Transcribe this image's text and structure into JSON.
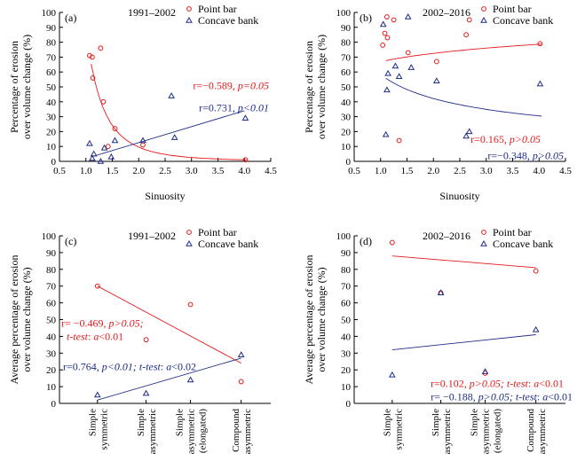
{
  "colors": {
    "point_bar": "#e31a1c",
    "concave_bank": "#1f2d87",
    "axis": "#000000"
  },
  "chart_data": [
    {
      "id": "a",
      "type": "scatter",
      "panel_label": "(a)",
      "period": "1991–2002",
      "xlabel": "Sinuosity",
      "ylabel": "Percentage of erosion over volume change (%)",
      "xlim": [
        0.5,
        4.5
      ],
      "ylim": [
        0,
        100
      ],
      "xticks": [
        "0.5",
        "1.0",
        "1.5",
        "2.0",
        "2.5",
        "3.0",
        "3.5",
        "4.0",
        "4.5"
      ],
      "yticks": [
        "0",
        "10",
        "20",
        "30",
        "40",
        "50",
        "60",
        "70",
        "80",
        "90",
        "100"
      ],
      "legend": [
        "Point bar",
        "Concave bank"
      ],
      "legend_placement": "top-right",
      "series": [
        {
          "name": "Point bar",
          "marker": "circle",
          "x": [
            1.07,
            1.12,
            1.13,
            1.28,
            1.33,
            1.42,
            1.55,
            2.08,
            4.02
          ],
          "y": [
            71,
            70,
            56,
            76,
            40,
            10,
            22,
            11,
            1
          ],
          "trend": "power",
          "trend_range": [
            1.1,
            4.05
          ],
          "stat": {
            "r": "r=−0.589, ",
            "p": "p=0.05"
          }
        },
        {
          "name": "Concave bank",
          "marker": "triangle",
          "x": [
            1.07,
            1.12,
            1.15,
            1.28,
            1.35,
            1.48,
            1.55,
            2.08,
            2.62,
            2.68,
            4.02
          ],
          "y": [
            12,
            2,
            5,
            0,
            9,
            3,
            14,
            14,
            44,
            16,
            29
          ],
          "trend": "linear",
          "trend_start": [
            1.1,
            3
          ],
          "trend_end": [
            4.0,
            34
          ],
          "stat": {
            "r": "r=0.731, ",
            "p": "p<0.01"
          }
        }
      ]
    },
    {
      "id": "b",
      "type": "scatter",
      "panel_label": "(b)",
      "period": "2002–2016",
      "xlabel": "Sinuosity",
      "ylabel": "Percentage of erosion over volume change (%)",
      "xlim": [
        0.5,
        4.5
      ],
      "ylim": [
        0,
        100
      ],
      "xticks": [
        "0.5",
        "1.0",
        "1.5",
        "2.0",
        "2.5",
        "3.0",
        "3.5",
        "4.0",
        "4.5"
      ],
      "yticks": [
        "0",
        "10",
        "20",
        "30",
        "40",
        "50",
        "60",
        "70",
        "80",
        "90",
        "100"
      ],
      "legend": [
        "Point bar",
        "Concave bank"
      ],
      "legend_placement": "top-right",
      "series": [
        {
          "name": "Point bar",
          "marker": "circle",
          "x": [
            1.04,
            1.08,
            1.12,
            1.13,
            1.25,
            1.35,
            1.52,
            2.06,
            2.62,
            2.68,
            4.02
          ],
          "y": [
            78,
            86,
            97,
            83,
            95,
            14,
            73,
            67,
            85,
            95,
            79
          ],
          "trend": "power",
          "trend_range": [
            1.1,
            4.05
          ],
          "stat": {
            "r": "r=0.165, ",
            "p": "p>0.05"
          }
        },
        {
          "name": "Concave bank",
          "marker": "triangle",
          "x": [
            1.05,
            1.1,
            1.12,
            1.14,
            1.28,
            1.35,
            1.52,
            1.58,
            2.06,
            2.62,
            2.68,
            4.02
          ],
          "y": [
            92,
            18,
            48,
            59,
            64,
            57,
            97,
            63,
            54,
            17,
            20,
            52
          ],
          "trend": "power",
          "trend_range": [
            1.1,
            4.05
          ],
          "stat": {
            "r": "r=−0.348, ",
            "p": "p>0.05"
          }
        }
      ]
    },
    {
      "id": "c",
      "type": "scatter",
      "panel_label": "(c)",
      "period": "1991–2002",
      "ylabel": "Average percentage of erosion over volume change (%)",
      "categories": [
        "Simple symmetric",
        "Simple asymmetric",
        "Simple asymmetric (elongated)",
        "Compound asymmetric"
      ],
      "category_lines": [
        [
          "Simple",
          "symmetric"
        ],
        [
          "Simple",
          "asymmetric"
        ],
        [
          "Simple",
          "asymmetric",
          "(elongated)"
        ],
        [
          "Compound",
          "asymmetric"
        ]
      ],
      "ylim": [
        0,
        100
      ],
      "yticks": [
        "0",
        "10",
        "20",
        "30",
        "40",
        "50",
        "60",
        "70",
        "80",
        "90",
        "100"
      ],
      "legend": [
        "Point bar",
        "Concave bank"
      ],
      "legend_placement": "top-right",
      "series": [
        {
          "name": "Point bar",
          "marker": "circle",
          "values": [
            70,
            38,
            59,
            13
          ],
          "trend_start": 70,
          "trend_end": 24,
          "stat": {
            "line1": {
              "r": "r= −0.469, ",
              "p": "p>0.05;"
            },
            "line2": {
              "t": "t-test",
              "rest": ": ",
              "a": "a",
              "tail": "<0.01"
            }
          }
        },
        {
          "name": "Concave bank",
          "marker": "triangle",
          "values": [
            5,
            6,
            14,
            29
          ],
          "trend_start": 2,
          "trend_end": 27,
          "stat": {
            "r": "r=0.764, ",
            "p": "p<0.01; ",
            "t": "t-test",
            "rest": ": ",
            "a": "a",
            "tail": "<0.02"
          }
        }
      ]
    },
    {
      "id": "d",
      "type": "scatter",
      "panel_label": "(d)",
      "period": "2002–2016",
      "ylabel": "Average percentage of erosion over volume change (%)",
      "categories": [
        "Simple symmetric",
        "Simple asymmetric",
        "Simple asymmetric (elongated)",
        "Compound asymmetric"
      ],
      "category_lines": [
        [
          "Simple",
          "symmetric"
        ],
        [
          "Simple",
          "asymmetric"
        ],
        [
          "Simple",
          "asymmetric",
          "(elongated)"
        ],
        [
          "Compound",
          "asymmetric"
        ]
      ],
      "ylim": [
        0,
        100
      ],
      "yticks": [
        "0",
        "10",
        "20",
        "30",
        "40",
        "50",
        "60",
        "70",
        "80",
        "90",
        "100"
      ],
      "legend": [
        "Point bar",
        "Concave bank"
      ],
      "legend_placement": "top-right",
      "series": [
        {
          "name": "Point bar",
          "marker": "circle",
          "values": [
            96,
            66,
            18,
            79
          ],
          "trend_start": 88,
          "trend_end": 81,
          "stat": {
            "r": "r=0.102, ",
            "p": "p>0.05; ",
            "t": "t-test",
            "rest": ": ",
            "a": "a",
            "tail": "<0.01"
          }
        },
        {
          "name": "Concave bank",
          "marker": "triangle",
          "values": [
            17,
            66,
            19,
            44
          ],
          "trend_start": 32,
          "trend_end": 41,
          "stat": {
            "r": "r= −0.188, ",
            "p": "p>0.05; ",
            "t": "t-test",
            "rest": ": ",
            "a": "a",
            "tail": "<0.01"
          }
        }
      ]
    }
  ]
}
